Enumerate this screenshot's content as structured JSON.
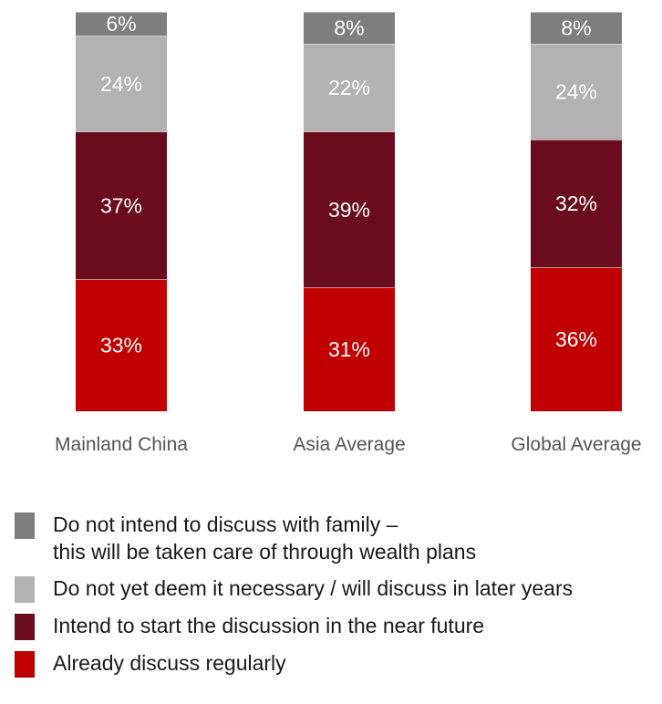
{
  "chart_data": {
    "type": "bar",
    "stacked": true,
    "categories": [
      "Mainland China",
      "Asia Average",
      "Global Average"
    ],
    "ylim": [
      0,
      100
    ],
    "series": [
      {
        "name": "Already discuss regularly",
        "color": "#c00000",
        "values": [
          33,
          31,
          36
        ],
        "labels": [
          "33%",
          "31%",
          "36%"
        ]
      },
      {
        "name": "Intend to start the discussion in the near future",
        "color": "#6b0b1e",
        "values": [
          37,
          39,
          32
        ],
        "labels": [
          "37%",
          "39%",
          "32%"
        ]
      },
      {
        "name": "Do not yet deem it necessary / will discuss in later years",
        "color": "#b3b1b1",
        "values": [
          24,
          22,
          24
        ],
        "labels": [
          "24%",
          "22%",
          "24%"
        ]
      },
      {
        "name": "Do not intend to discuss with family – this will be taken care of through wealth plans",
        "color": "#7e7e7e",
        "values": [
          6,
          8,
          8
        ],
        "labels": [
          "6%",
          "8%",
          "8%"
        ]
      }
    ]
  },
  "legend": {
    "items": [
      {
        "lines": [
          "Do not intend to discuss with family –",
          "this will be taken care of through wealth plans"
        ],
        "color": "#7e7e7e"
      },
      {
        "lines": [
          "Do not yet deem it necessary / will discuss in later years"
        ],
        "color": "#b3b1b1"
      },
      {
        "lines": [
          "Intend to start the discussion in the near future"
        ],
        "color": "#6b0b1e"
      },
      {
        "lines": [
          "Already discuss regularly"
        ],
        "color": "#c00000"
      }
    ]
  }
}
